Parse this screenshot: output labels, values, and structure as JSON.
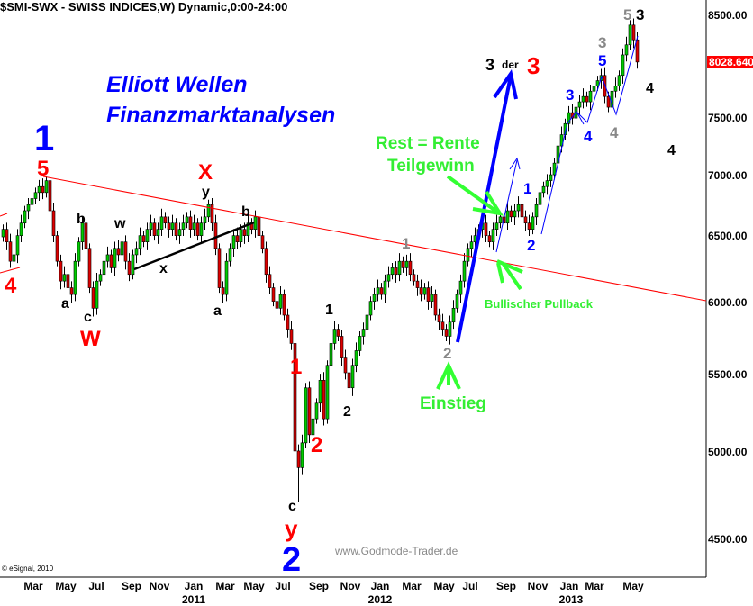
{
  "header": {
    "title": "$SMI-SWX - SWISS INDICES,W) Dynamic,0:00-24:00"
  },
  "chart_data": {
    "type": "candlestick",
    "interval": "weekly",
    "y_scale": "log",
    "ylim": [
      4300,
      8700
    ],
    "grid": false,
    "colors": {
      "up": "#00cc00",
      "down": "#dd0000",
      "outline": "#000000",
      "trendline": "#ff0000"
    },
    "y_ticks": [
      "8500.00",
      "7500.00",
      "7000.00",
      "6500.00",
      "6000.00",
      "5500.00",
      "5000.00",
      "4500.00"
    ],
    "y_tick_values": [
      8500,
      7500,
      7000,
      6500,
      6000,
      5500,
      5000,
      4500
    ],
    "last_price": "8028.640",
    "x_ticks": [
      "Mar",
      "May",
      "Jul",
      "Sep",
      "Nov",
      "Jan",
      "Mar",
      "May",
      "Jul",
      "Sep",
      "Nov",
      "Jan",
      "Mar",
      "May",
      "Jul",
      "Sep",
      "Nov",
      "Jan",
      "Mar",
      "May"
    ],
    "x_years": [
      "2011",
      "2012",
      "2013"
    ],
    "closes": [
      6550,
      6450,
      6300,
      6350,
      6500,
      6600,
      6700,
      6750,
      6800,
      6850,
      6900,
      6850,
      6950,
      6700,
      6500,
      6300,
      6150,
      6200,
      6100,
      6050,
      6300,
      6450,
      6600,
      6400,
      6100,
      5950,
      6150,
      6200,
      6300,
      6350,
      6250,
      6400,
      6350,
      6450,
      6300,
      6200,
      6350,
      6400,
      6500,
      6450,
      6550,
      6600,
      6500,
      6550,
      6650,
      6600,
      6550,
      6600,
      6500,
      6550,
      6600,
      6650,
      6550,
      6600,
      6500,
      6600,
      6650,
      6750,
      6600,
      6400,
      6100,
      6050,
      6300,
      6400,
      6500,
      6450,
      6550,
      6500,
      6600,
      6550,
      6650,
      6500,
      6400,
      6200,
      6100,
      6000,
      5950,
      6050,
      5900,
      5800,
      5700,
      5000,
      4900,
      5050,
      5400,
      5100,
      5200,
      5300,
      5450,
      5200,
      5550,
      5700,
      5800,
      5750,
      5600,
      5500,
      5400,
      5550,
      5650,
      5750,
      5800,
      5900,
      6000,
      6050,
      6100,
      6050,
      6150,
      6200,
      6250,
      6200,
      6300,
      6250,
      6300,
      6200,
      6150,
      6100,
      6050,
      6100,
      6000,
      6050,
      5900,
      5850,
      5800,
      5750,
      5850,
      5950,
      6050,
      6150,
      6300,
      6400,
      6450,
      6500,
      6550,
      6600,
      6500,
      6450,
      6550,
      6600,
      6650,
      6600,
      6700,
      6650,
      6700,
      6750,
      6650,
      6600,
      6550,
      6650,
      6750,
      6850,
      6900,
      6950,
      7000,
      7100,
      7250,
      7350,
      7450,
      7550,
      7500,
      7600,
      7650,
      7700,
      7650,
      7750,
      7800,
      7850,
      7900,
      7700,
      7600,
      7750,
      7800,
      7900,
      8100,
      8200,
      8400,
      8250,
      8030
    ],
    "annotations": {
      "headline1": "Elliott Wellen",
      "headline2": "Finanzmarktanalysen",
      "w1_blue": "1",
      "w5_red": "5",
      "w4_red": "4",
      "a1": "a",
      "b1": "b",
      "c1": "c",
      "W_red": "W",
      "w_small": "w",
      "x_small": "x",
      "X_red": "X",
      "y_small": "y",
      "b2": "b",
      "a2": "a",
      "c2": "c",
      "y_red": "y",
      "w2_blue": "2",
      "w1_red": "1",
      "w2_red": "2",
      "w1_black": "1",
      "w2_black": "2",
      "w1_grey": "1",
      "w2_grey": "2",
      "einstieg": "Einstieg",
      "rest": "Rente",
      "rest_prefix": "Rest = ",
      "teilgewinn": "Teilgewinn",
      "bullish": "Bullischer Pullback",
      "w3": "3",
      "der": "der",
      "w3_red": "3",
      "w1_blue_s": "1",
      "w2_blue_s": "2",
      "w3_blue_s": "3",
      "w4_blue_s": "4",
      "w5_blue_s": "5",
      "w3_grey": "3",
      "w4_grey": "4",
      "w5_grey": "5",
      "w3_black_top": "3",
      "w4_black1": "4",
      "w4_black2": "4"
    },
    "watermark": "www.Godmode-Trader.de",
    "copyright": "© eSignal, 2010"
  }
}
